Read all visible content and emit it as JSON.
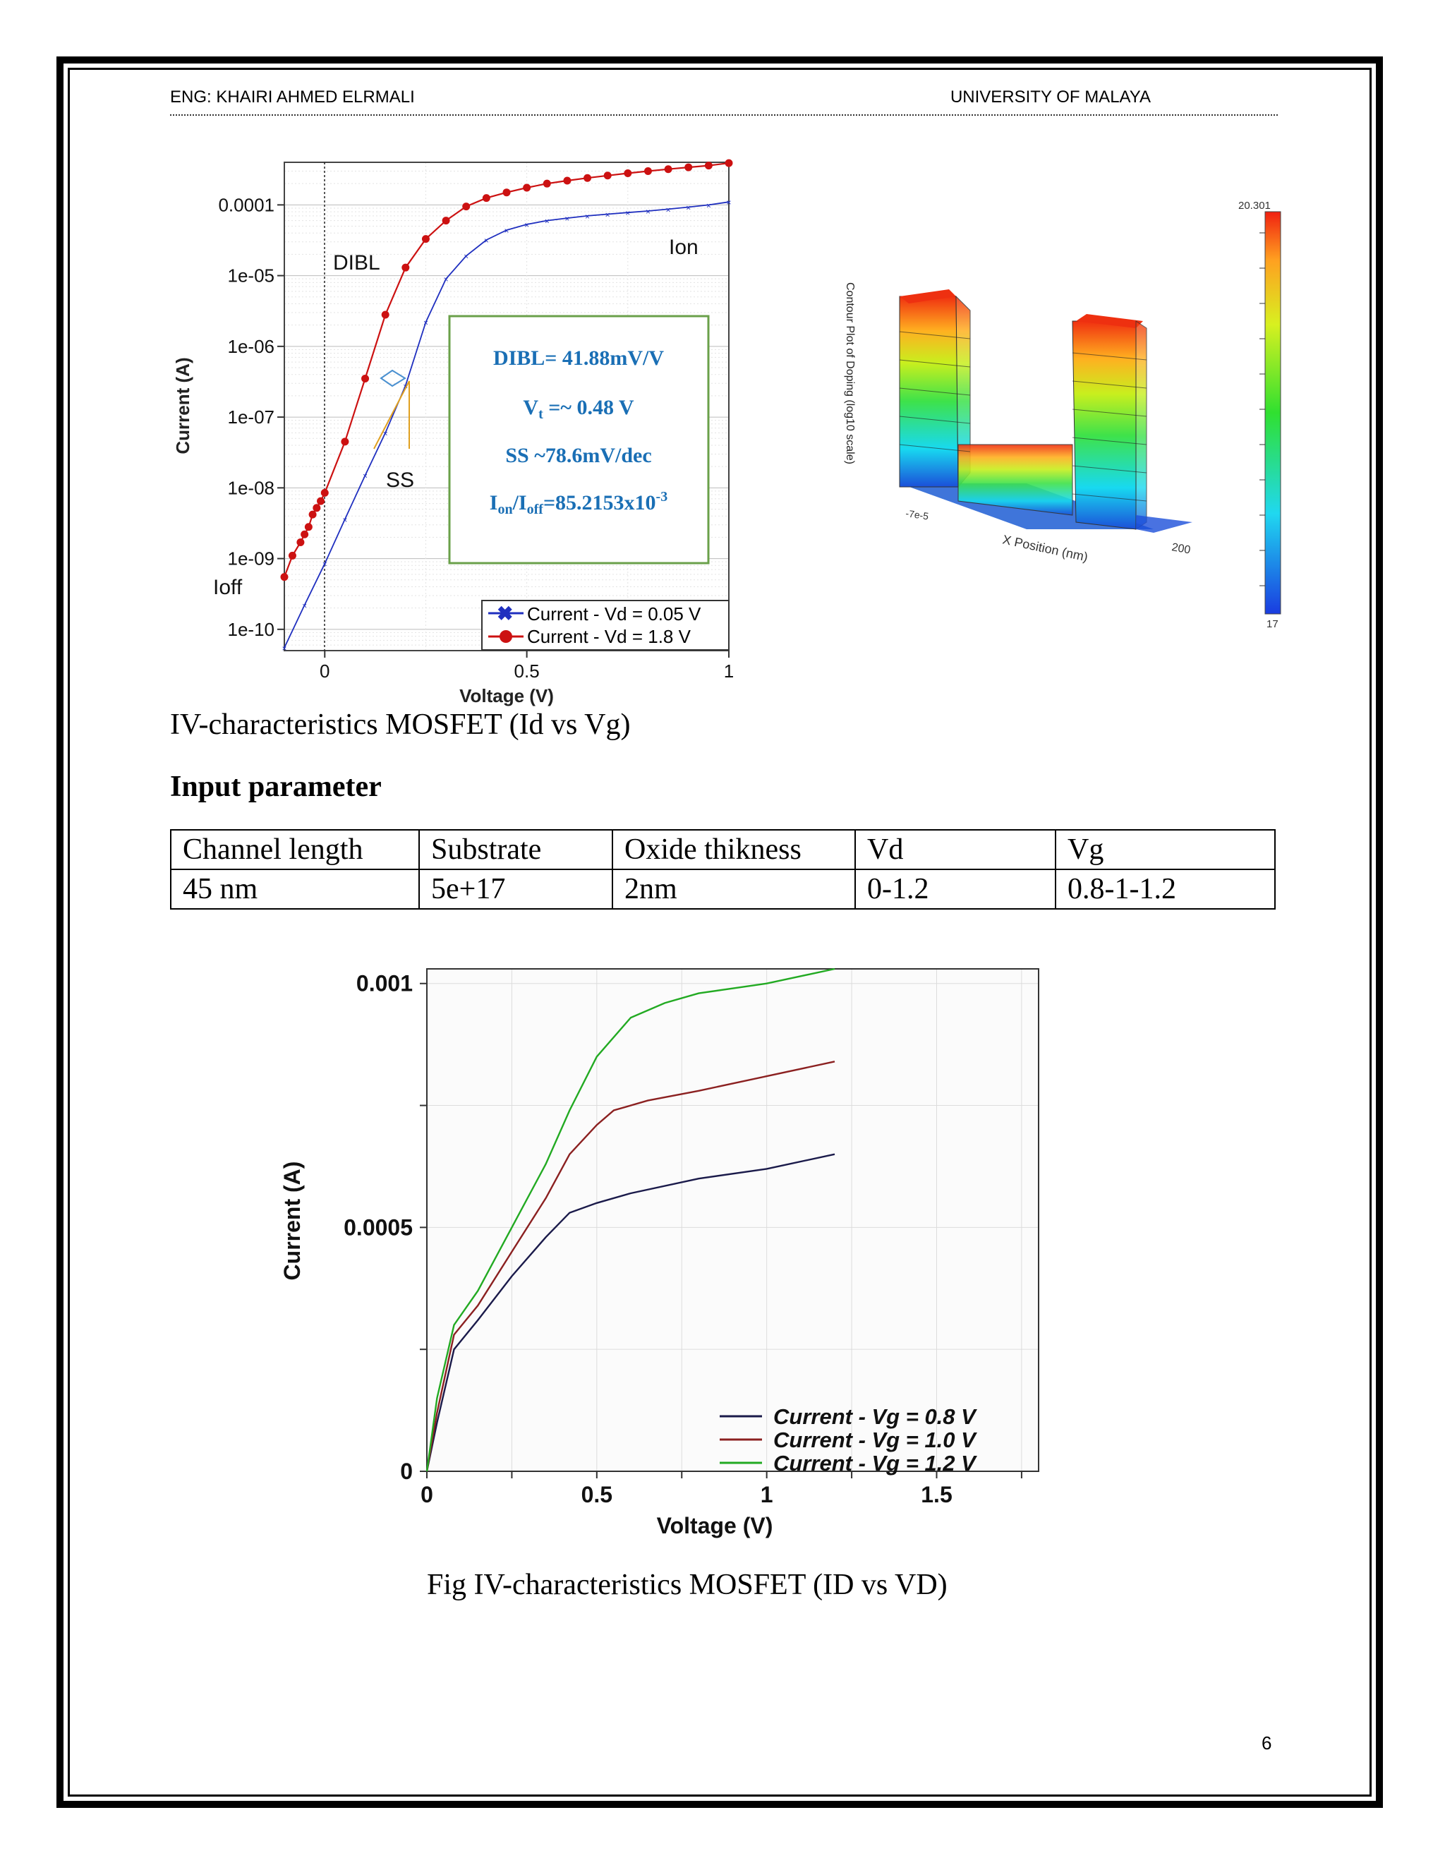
{
  "header": {
    "author": "ENG: KHAIRI  AHMED  ELRMALI",
    "university": "UNIVERSITY OF MALAYA"
  },
  "figure1": {
    "caption": "IV-characteristics MOSFET (Id vs Vg)",
    "annotations": {
      "dibl": "DIBL",
      "ion": "Ion",
      "ioff": "Ioff",
      "ss": "SS"
    },
    "results_box": {
      "dibl": "DIBL= 41.88mV/V",
      "vt_main": "V",
      "vt_sub": "t",
      "vt_rest": " =~ 0.48 V",
      "ss": "SS ~78.6mV/dec",
      "ratio_i1": "I",
      "ratio_on": "on",
      "ratio_slash": "/I",
      "ratio_off": "off",
      "ratio_val": "=85.2153x10",
      "ratio_exp": "-3"
    }
  },
  "doping_plot": {
    "axis_title": "Contour Plot of Doping (log10 scale)",
    "x_axis_label": "X Position (nm)",
    "x_tick_left": "-7e-5",
    "x_tick_right": "200",
    "colorbar_max": "20.301",
    "colorbar_min": "17"
  },
  "parameters": {
    "title": "Input parameter",
    "headers": [
      "Channel length",
      "Substrate",
      "Oxide thikness",
      "Vd",
      "Vg"
    ],
    "values": [
      "45 nm",
      "5e+17",
      "2nm",
      "0-1.2",
      "0.8-1-1.2"
    ]
  },
  "figure2": {
    "caption": "Fig  IV-characteristics MOSFET (ID vs VD)"
  },
  "page_number": "6",
  "chart_data": [
    {
      "type": "line",
      "xlabel": "Voltage (V)",
      "ylabel": "Current (A)",
      "xlim": [
        -0.1,
        1.0
      ],
      "ylim": [
        5e-11,
        0.0004
      ],
      "y_scale": "log",
      "x_ticks": [
        "0",
        "0.5",
        "1"
      ],
      "y_ticks": [
        "0.0001",
        "1e-05",
        "1e-06",
        "1e-07",
        "1e-08",
        "1e-09",
        "1e-10"
      ],
      "legend_position": "bottom-right",
      "series": [
        {
          "name": "Current - Vd = 0.05 V",
          "color": "#1f2fbf",
          "x": [
            -0.1,
            -0.05,
            0,
            0.05,
            0.1,
            0.15,
            0.2,
            0.25,
            0.3,
            0.35,
            0.4,
            0.45,
            0.5,
            0.55,
            0.6,
            0.65,
            0.7,
            0.75,
            0.8,
            0.85,
            0.9,
            0.95,
            1.0
          ],
          "y": [
            5.5e-11,
            2.2e-10,
            8.5e-10,
            3.6e-09,
            1.5e-08,
            6e-08,
            2.8e-07,
            2.2e-06,
            9e-06,
            1.9e-05,
            3.2e-05,
            4.4e-05,
            5.3e-05,
            6e-05,
            6.5e-05,
            7e-05,
            7.4e-05,
            7.8e-05,
            8.2e-05,
            8.7e-05,
            9.3e-05,
            0.0001,
            0.00011
          ]
        },
        {
          "name": "Current - Vd = 1.8 V",
          "color": "#cc1111",
          "x": [
            -0.1,
            -0.08,
            -0.06,
            -0.05,
            -0.04,
            -0.03,
            -0.02,
            -0.01,
            0,
            0.05,
            0.1,
            0.15,
            0.2,
            0.25,
            0.3,
            0.35,
            0.4,
            0.45,
            0.5,
            0.55,
            0.6,
            0.65,
            0.7,
            0.75,
            0.8,
            0.85,
            0.9,
            0.95,
            1.0
          ],
          "y": [
            5.5e-10,
            1.1e-09,
            1.7e-09,
            2.2e-09,
            2.8e-09,
            4.2e-09,
            5.2e-09,
            6.5e-09,
            8.5e-09,
            4.5e-08,
            3.5e-07,
            2.8e-06,
            1.3e-05,
            3.3e-05,
            6e-05,
            9.5e-05,
            0.000125,
            0.00015,
            0.000175,
            0.0002,
            0.00022,
            0.00024,
            0.00026,
            0.00028,
            0.0003,
            0.00032,
            0.00034,
            0.00036,
            0.00039
          ]
        }
      ]
    },
    {
      "type": "line",
      "xlabel": "Voltage (V)",
      "ylabel": "Current (A)",
      "xlim": [
        0,
        1.8
      ],
      "ylim": [
        0,
        0.00103
      ],
      "x_ticks": [
        "0",
        "0.5",
        "1",
        "1.5"
      ],
      "y_ticks": [
        "0",
        "0.0005",
        "0.001"
      ],
      "legend_position": "bottom-right",
      "series": [
        {
          "name": "Current - Vg = 0.8 V",
          "color": "#1a1a4a",
          "x": [
            0,
            0.03,
            0.08,
            0.15,
            0.25,
            0.35,
            0.42,
            0.5,
            0.6,
            0.8,
            1.0,
            1.2
          ],
          "y": [
            0,
            0.0001,
            0.00025,
            0.00031,
            0.0004,
            0.00048,
            0.00053,
            0.00055,
            0.00057,
            0.0006,
            0.00062,
            0.00065
          ]
        },
        {
          "name": "Current - Vg = 1.0 V",
          "color": "#8b2020",
          "x": [
            0,
            0.03,
            0.08,
            0.15,
            0.25,
            0.35,
            0.42,
            0.5,
            0.55,
            0.65,
            0.8,
            1.0,
            1.2
          ],
          "y": [
            0,
            0.00012,
            0.00028,
            0.00034,
            0.00045,
            0.00056,
            0.00065,
            0.00071,
            0.00074,
            0.00076,
            0.00078,
            0.00081,
            0.00084
          ]
        },
        {
          "name": "Current - Vg = 1.2 V",
          "color": "#22aa22",
          "x": [
            0,
            0.03,
            0.08,
            0.15,
            0.25,
            0.35,
            0.42,
            0.5,
            0.6,
            0.7,
            0.8,
            1.0,
            1.2
          ],
          "y": [
            0,
            0.00015,
            0.0003,
            0.00037,
            0.0005,
            0.00063,
            0.00074,
            0.00085,
            0.00093,
            0.00096,
            0.00098,
            0.001,
            0.00103
          ]
        }
      ]
    }
  ]
}
